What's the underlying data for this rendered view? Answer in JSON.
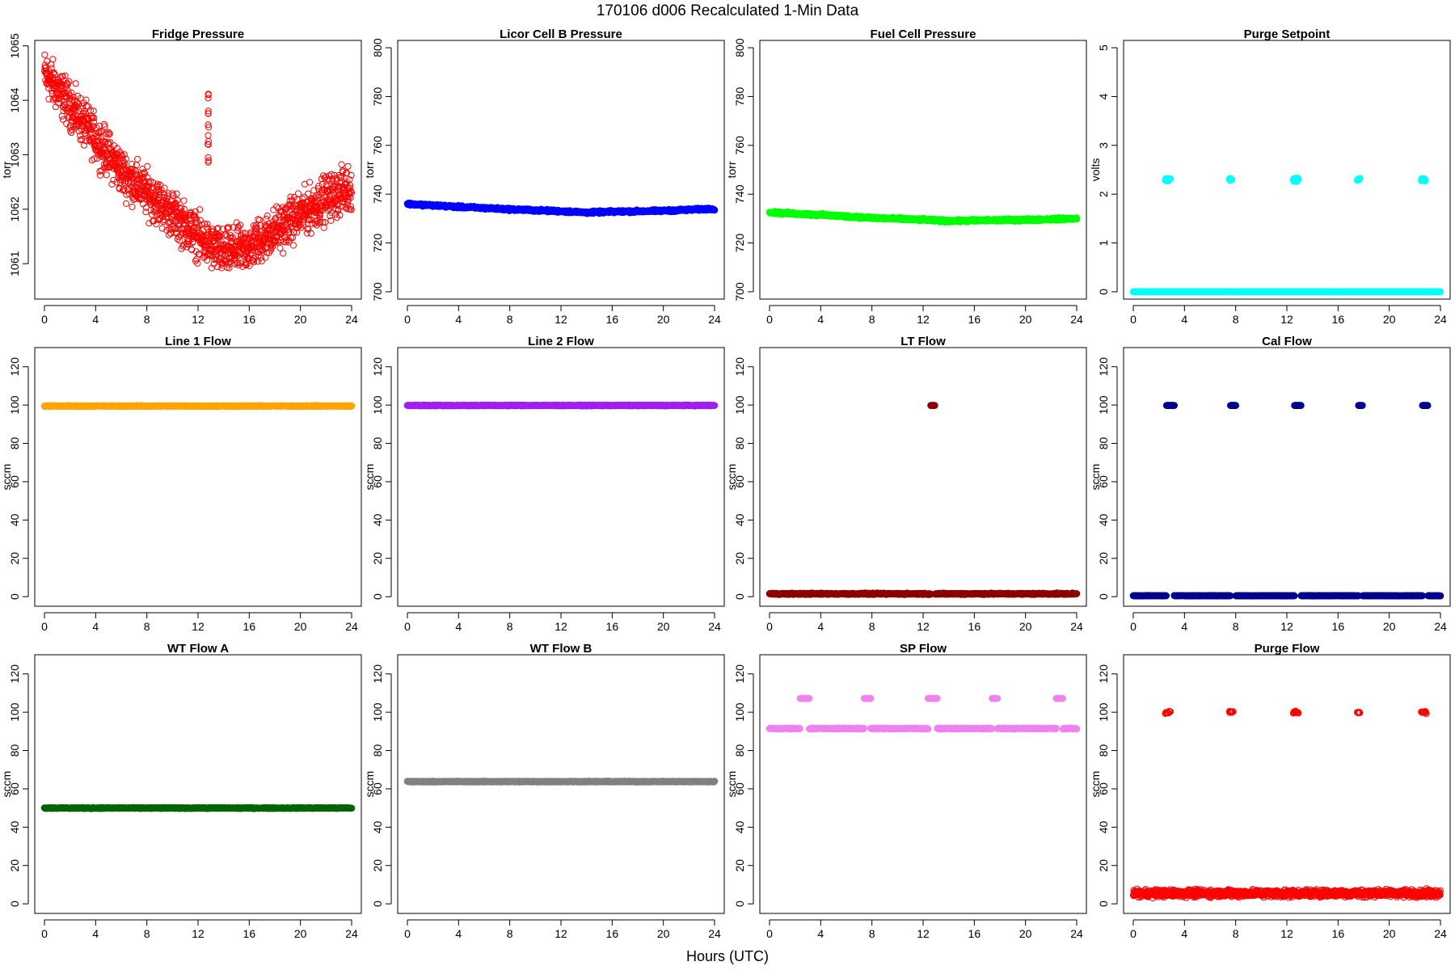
{
  "figure": {
    "title": "170106   d006   Recalculated 1-Min Data",
    "xlabel": "Hours (UTC)"
  },
  "chart_data": [
    {
      "type": "scatter",
      "title": "Fridge Pressure",
      "ylabel": "torr",
      "color": "#ff0000",
      "marker": "open",
      "xlim": [
        0,
        24
      ],
      "ylim": [
        1060.35,
        1065.1
      ],
      "x_ticks": [
        0,
        4,
        8,
        12,
        16,
        20,
        24
      ],
      "y_ticks": [
        1061,
        1062,
        1063,
        1064,
        1065
      ],
      "trend_x": [
        0,
        2,
        4,
        6,
        8,
        10,
        12,
        13,
        14,
        16,
        18,
        20,
        22,
        24
      ],
      "trend_y": [
        1064.5,
        1063.9,
        1063.3,
        1062.7,
        1062.3,
        1061.9,
        1061.5,
        1061.3,
        1061.2,
        1061.3,
        1061.6,
        1061.9,
        1062.2,
        1062.4
      ],
      "noise": 0.35,
      "outliers": [
        {
          "x": 12.8,
          "y": [
            1062.9,
            1063.2,
            1063.5,
            1063.8,
            1064.1
          ]
        }
      ]
    },
    {
      "type": "scatter",
      "title": "Licor Cell B Pressure",
      "ylabel": "torr",
      "color": "#0000ff",
      "marker": "filled",
      "xlim": [
        0,
        24
      ],
      "ylim": [
        697,
        803
      ],
      "x_ticks": [
        0,
        4,
        8,
        12,
        16,
        20,
        24
      ],
      "y_ticks": [
        700,
        720,
        740,
        760,
        780,
        800
      ],
      "trend_x": [
        0,
        4,
        8,
        12,
        14,
        16,
        20,
        24
      ],
      "trend_y": [
        736,
        734.8,
        733.8,
        733,
        732.5,
        732.8,
        733.2,
        734
      ],
      "noise": 0.4
    },
    {
      "type": "scatter",
      "title": "Fuel Cell Pressure",
      "ylabel": "torr",
      "color": "#00ff00",
      "marker": "filled",
      "xlim": [
        0,
        24
      ],
      "ylim": [
        697,
        803
      ],
      "x_ticks": [
        0,
        4,
        8,
        12,
        16,
        20,
        24
      ],
      "y_ticks": [
        700,
        720,
        740,
        760,
        780,
        800
      ],
      "trend_x": [
        0,
        4,
        8,
        12,
        14,
        16,
        20,
        24
      ],
      "trend_y": [
        732.5,
        731.5,
        730.3,
        729.5,
        729,
        729.2,
        729.5,
        730
      ],
      "noise": 0.4
    },
    {
      "type": "scatter",
      "title": "Purge Setpoint",
      "ylabel": "volts",
      "color": "#00ffff",
      "marker": "filled",
      "xlim": [
        0,
        24
      ],
      "ylim": [
        -0.15,
        5.15
      ],
      "x_ticks": [
        0,
        4,
        8,
        12,
        16,
        20,
        24
      ],
      "y_ticks": [
        0,
        1,
        2,
        3,
        4,
        5
      ],
      "trend_x": [
        0,
        24
      ],
      "trend_y": [
        0,
        0
      ],
      "noise": 0,
      "clusters": [
        {
          "x0": 2.5,
          "x1": 2.9,
          "y": 2.3
        },
        {
          "x0": 7.5,
          "x1": 7.7,
          "y": 2.3
        },
        {
          "x0": 12.5,
          "x1": 12.9,
          "y": 2.3
        },
        {
          "x0": 17.5,
          "x1": 17.7,
          "y": 2.3
        },
        {
          "x0": 22.5,
          "x1": 22.8,
          "y": 2.3
        }
      ]
    },
    {
      "type": "scatter",
      "title": "Line 1 Flow",
      "ylabel": "sccm",
      "color": "#ffa500",
      "marker": "filled",
      "xlim": [
        0,
        24
      ],
      "ylim": [
        -5,
        130
      ],
      "x_ticks": [
        0,
        4,
        8,
        12,
        16,
        20,
        24
      ],
      "y_ticks": [
        0,
        20,
        40,
        60,
        80,
        100,
        120
      ],
      "trend_x": [
        0,
        24
      ],
      "trend_y": [
        99.5,
        99.5
      ],
      "noise": 0.2
    },
    {
      "type": "scatter",
      "title": "Line 2 Flow",
      "ylabel": "sccm",
      "color": "#a020f0",
      "marker": "filled",
      "xlim": [
        0,
        24
      ],
      "ylim": [
        -5,
        130
      ],
      "x_ticks": [
        0,
        4,
        8,
        12,
        16,
        20,
        24
      ],
      "y_ticks": [
        0,
        20,
        40,
        60,
        80,
        100,
        120
      ],
      "trend_x": [
        0,
        24
      ],
      "trend_y": [
        99.8,
        99.8
      ],
      "noise": 0.2
    },
    {
      "type": "scatter",
      "title": "LT Flow",
      "ylabel": "sccm",
      "color": "#8b0000",
      "marker": "filled",
      "xlim": [
        0,
        24
      ],
      "ylim": [
        -5,
        130
      ],
      "x_ticks": [
        0,
        4,
        8,
        12,
        16,
        20,
        24
      ],
      "y_ticks": [
        0,
        20,
        40,
        60,
        80,
        100,
        120
      ],
      "trend_x": [
        0,
        24
      ],
      "trend_y": [
        1.5,
        1.5
      ],
      "noise": 0.3,
      "clusters": [
        {
          "x0": 12.6,
          "x1": 12.9,
          "y": 99.8
        }
      ]
    },
    {
      "type": "scatter",
      "title": "Cal Flow",
      "ylabel": "sccm",
      "color": "#00008b",
      "marker": "filled",
      "xlim": [
        0,
        24
      ],
      "ylim": [
        -5,
        130
      ],
      "x_ticks": [
        0,
        4,
        8,
        12,
        16,
        20,
        24
      ],
      "y_ticks": [
        0,
        20,
        40,
        60,
        80,
        100,
        120
      ],
      "trend_x": [
        0,
        24
      ],
      "trend_y": [
        0.5,
        0.5
      ],
      "noise": 0.1,
      "clusters": [
        {
          "x0": 2.6,
          "x1": 3.2,
          "y": 99.8
        },
        {
          "x0": 7.6,
          "x1": 8.0,
          "y": 99.8
        },
        {
          "x0": 12.6,
          "x1": 13.1,
          "y": 99.8
        },
        {
          "x0": 17.6,
          "x1": 17.9,
          "y": 99.8
        },
        {
          "x0": 22.6,
          "x1": 23.0,
          "y": 99.8
        }
      ]
    },
    {
      "type": "scatter",
      "title": "WT Flow A",
      "ylabel": "sccm",
      "color": "#006400",
      "marker": "filled",
      "xlim": [
        0,
        24
      ],
      "ylim": [
        -5,
        130
      ],
      "x_ticks": [
        0,
        4,
        8,
        12,
        16,
        20,
        24
      ],
      "y_ticks": [
        0,
        20,
        40,
        60,
        80,
        100,
        120
      ],
      "trend_x": [
        0,
        24
      ],
      "trend_y": [
        50,
        50
      ],
      "noise": 0.2
    },
    {
      "type": "scatter",
      "title": "WT Flow B",
      "ylabel": "sccm",
      "color": "#808080",
      "marker": "filled",
      "xlim": [
        0,
        24
      ],
      "ylim": [
        -5,
        130
      ],
      "x_ticks": [
        0,
        4,
        8,
        12,
        16,
        20,
        24
      ],
      "y_ticks": [
        0,
        20,
        40,
        60,
        80,
        100,
        120
      ],
      "trend_x": [
        0,
        24
      ],
      "trend_y": [
        63.8,
        63.8
      ],
      "noise": 0.2
    },
    {
      "type": "scatter",
      "title": "SP Flow",
      "ylabel": "sccm",
      "color": "#ee82ee",
      "marker": "filled",
      "xlim": [
        0,
        24
      ],
      "ylim": [
        -5,
        130
      ],
      "x_ticks": [
        0,
        4,
        8,
        12,
        16,
        20,
        24
      ],
      "y_ticks": [
        0,
        20,
        40,
        60,
        80,
        100,
        120
      ],
      "trend_x": [
        0,
        24
      ],
      "trend_y": [
        91.5,
        91.5
      ],
      "noise": 0.2,
      "clusters": [
        {
          "x0": 2.4,
          "x1": 3.1,
          "y": 107.2
        },
        {
          "x0": 7.4,
          "x1": 7.9,
          "y": 107.2
        },
        {
          "x0": 12.4,
          "x1": 13.1,
          "y": 107.2
        },
        {
          "x0": 17.4,
          "x1": 17.8,
          "y": 107.2
        },
        {
          "x0": 22.4,
          "x1": 22.9,
          "y": 107.2
        }
      ]
    },
    {
      "type": "scatter",
      "title": "Purge Flow",
      "ylabel": "sccm",
      "color": "#ff0000",
      "marker": "open",
      "xlim": [
        0,
        24
      ],
      "ylim": [
        -5,
        130
      ],
      "x_ticks": [
        0,
        4,
        8,
        12,
        16,
        20,
        24
      ],
      "y_ticks": [
        0,
        20,
        40,
        60,
        80,
        100,
        120
      ],
      "trend_x": [
        0,
        24
      ],
      "trend_y": [
        5.5,
        5.5
      ],
      "noise": 1.6,
      "clusters": [
        {
          "x0": 2.5,
          "x1": 2.9,
          "y": 100
        },
        {
          "x0": 7.5,
          "x1": 7.8,
          "y": 100
        },
        {
          "x0": 12.5,
          "x1": 12.9,
          "y": 100
        },
        {
          "x0": 17.5,
          "x1": 17.7,
          "y": 100
        },
        {
          "x0": 22.5,
          "x1": 22.9,
          "y": 100
        }
      ]
    }
  ]
}
